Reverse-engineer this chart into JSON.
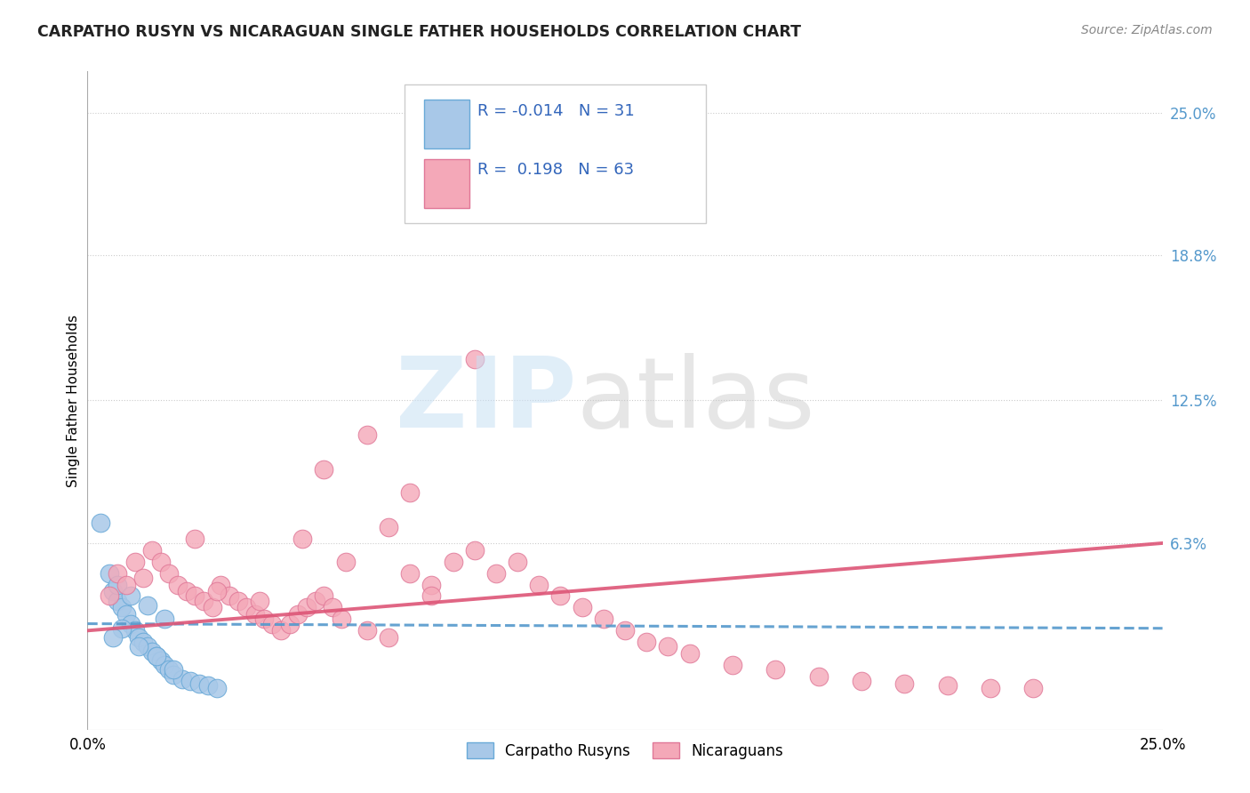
{
  "title": "CARPATHO RUSYN VS NICARAGUAN SINGLE FATHER HOUSEHOLDS CORRELATION CHART",
  "source": "Source: ZipAtlas.com",
  "ylabel": "Single Father Households",
  "ytick_vals": [
    0.063,
    0.125,
    0.188,
    0.25
  ],
  "ytick_labels": [
    "6.3%",
    "12.5%",
    "18.8%",
    "25.0%"
  ],
  "xlim": [
    0.0,
    0.25
  ],
  "ylim": [
    -0.018,
    0.268
  ],
  "legend_r_blue": "-0.014",
  "legend_n_blue": "31",
  "legend_r_pink": "0.198",
  "legend_n_pink": "63",
  "blue_color": "#a8c8e8",
  "blue_edge": "#6aaad8",
  "pink_color": "#f4a8b8",
  "pink_edge": "#e07898",
  "trend_blue_color": "#5599cc",
  "trend_pink_color": "#dd5577",
  "grid_color": "#cccccc",
  "title_color": "#222222",
  "source_color": "#888888",
  "ytick_color": "#5599cc",
  "blue_x": [
    0.003,
    0.006,
    0.007,
    0.008,
    0.009,
    0.01,
    0.011,
    0.012,
    0.013,
    0.014,
    0.015,
    0.016,
    0.017,
    0.018,
    0.019,
    0.02,
    0.022,
    0.024,
    0.026,
    0.028,
    0.03,
    0.005,
    0.007,
    0.01,
    0.014,
    0.018,
    0.008,
    0.006,
    0.012,
    0.016,
    0.02
  ],
  "blue_y": [
    0.072,
    0.042,
    0.038,
    0.035,
    0.032,
    0.028,
    0.025,
    0.022,
    0.02,
    0.018,
    0.016,
    0.014,
    0.012,
    0.01,
    0.008,
    0.006,
    0.004,
    0.003,
    0.002,
    0.001,
    0.0,
    0.05,
    0.045,
    0.04,
    0.036,
    0.03,
    0.026,
    0.022,
    0.018,
    0.014,
    0.008
  ],
  "pink_x": [
    0.005,
    0.007,
    0.009,
    0.011,
    0.013,
    0.015,
    0.017,
    0.019,
    0.021,
    0.023,
    0.025,
    0.027,
    0.029,
    0.031,
    0.033,
    0.035,
    0.037,
    0.039,
    0.041,
    0.043,
    0.045,
    0.047,
    0.049,
    0.051,
    0.053,
    0.055,
    0.057,
    0.059,
    0.065,
    0.07,
    0.075,
    0.08,
    0.085,
    0.09,
    0.095,
    0.1,
    0.105,
    0.11,
    0.115,
    0.12,
    0.125,
    0.13,
    0.135,
    0.14,
    0.15,
    0.16,
    0.17,
    0.18,
    0.19,
    0.2,
    0.21,
    0.22,
    0.09,
    0.065,
    0.075,
    0.05,
    0.055,
    0.04,
    0.03,
    0.025,
    0.07,
    0.08,
    0.06
  ],
  "pink_y": [
    0.04,
    0.05,
    0.045,
    0.055,
    0.048,
    0.06,
    0.055,
    0.05,
    0.045,
    0.042,
    0.04,
    0.038,
    0.035,
    0.045,
    0.04,
    0.038,
    0.035,
    0.032,
    0.03,
    0.028,
    0.025,
    0.028,
    0.032,
    0.035,
    0.038,
    0.04,
    0.035,
    0.03,
    0.025,
    0.022,
    0.05,
    0.045,
    0.055,
    0.06,
    0.05,
    0.055,
    0.045,
    0.04,
    0.035,
    0.03,
    0.025,
    0.02,
    0.018,
    0.015,
    0.01,
    0.008,
    0.005,
    0.003,
    0.002,
    0.001,
    0.0,
    0.0,
    0.143,
    0.11,
    0.085,
    0.065,
    0.095,
    0.038,
    0.042,
    0.065,
    0.07,
    0.04,
    0.055
  ]
}
